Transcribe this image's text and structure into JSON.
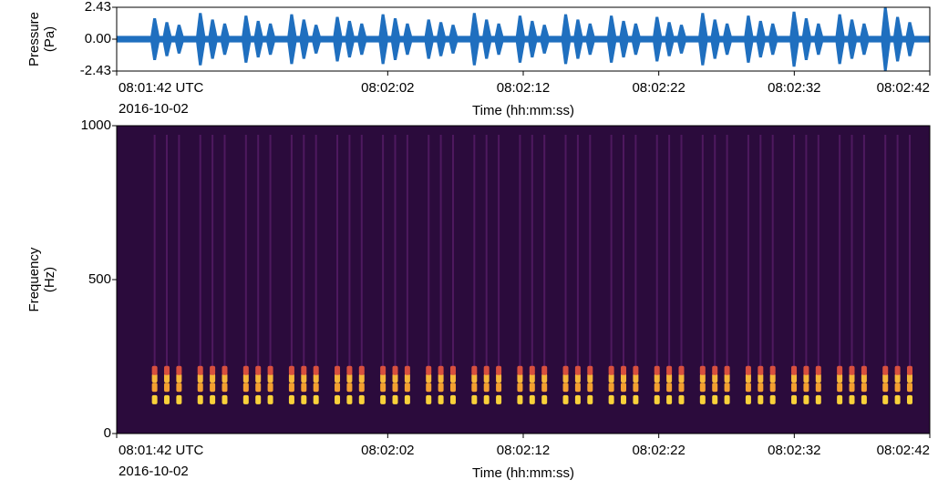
{
  "chart_data": [
    {
      "type": "waveform",
      "ylabel": [
        "Pressure",
        "(Pa)"
      ],
      "xlabel": "Time (hh:mm:ss)",
      "date": "2016-10-02",
      "color": "#1f6fbf",
      "noise_amplitude": 0.25,
      "xlim": [
        0,
        60
      ],
      "xticks": [
        {
          "value": 0,
          "label": "08:01:42 UTC"
        },
        {
          "value": 20,
          "label": "08:02:02"
        },
        {
          "value": 30,
          "label": "08:02:12"
        },
        {
          "value": 40,
          "label": "08:02:22"
        },
        {
          "value": 50,
          "label": "08:02:32"
        },
        {
          "value": 60,
          "label": "08:02:42"
        }
      ],
      "ylim": [
        -2.43,
        2.43
      ],
      "yticks": [
        2.43,
        {
          "value": 0,
          "label": "0.00"
        },
        -2.43
      ],
      "x": [
        2.8,
        3.7,
        4.6,
        6.17,
        7.07,
        7.97,
        9.54,
        10.44,
        11.34,
        12.91,
        13.81,
        14.71,
        16.28,
        17.18,
        18.08,
        19.65,
        20.55,
        21.45,
        23.02,
        23.92,
        24.82,
        26.39,
        27.29,
        28.19,
        29.76,
        30.66,
        31.56,
        33.13,
        34.03,
        34.93,
        36.5,
        37.4,
        38.3,
        39.87,
        40.77,
        41.67,
        43.24,
        44.14,
        45.04,
        46.61,
        47.51,
        48.41,
        49.98,
        50.88,
        51.78,
        53.35,
        54.25,
        55.15,
        56.72,
        57.62,
        58.52
      ],
      "values": [
        1.6,
        1.3,
        1.1,
        2.0,
        1.5,
        1.2,
        1.8,
        1.4,
        1.2,
        1.9,
        1.5,
        1.1,
        1.7,
        1.4,
        1.2,
        1.9,
        1.6,
        1.2,
        1.5,
        1.3,
        1.1,
        2.0,
        1.5,
        1.2,
        1.8,
        1.4,
        1.1,
        1.9,
        1.5,
        1.2,
        1.8,
        1.4,
        1.2,
        1.7,
        1.3,
        1.1,
        2.0,
        1.5,
        1.2,
        1.8,
        1.4,
        1.2,
        2.1,
        1.6,
        1.2,
        1.9,
        1.5,
        1.2,
        2.4,
        1.7,
        1.3
      ]
    },
    {
      "type": "spectrogram",
      "ylabel": [
        "Frequency",
        "(Hz)"
      ],
      "background_color": "#2b0b3c",
      "streak_color": "#7a2a8a",
      "xlim": [
        0,
        60
      ],
      "ylim": [
        0,
        1000
      ],
      "yticks": [
        0,
        500,
        1000
      ],
      "blob_frequencies": [
        110,
        150,
        180,
        205
      ],
      "blob_colors": [
        "#f9d13a",
        "#f4a030",
        "#f7b83a",
        "#d8503e"
      ]
    }
  ]
}
